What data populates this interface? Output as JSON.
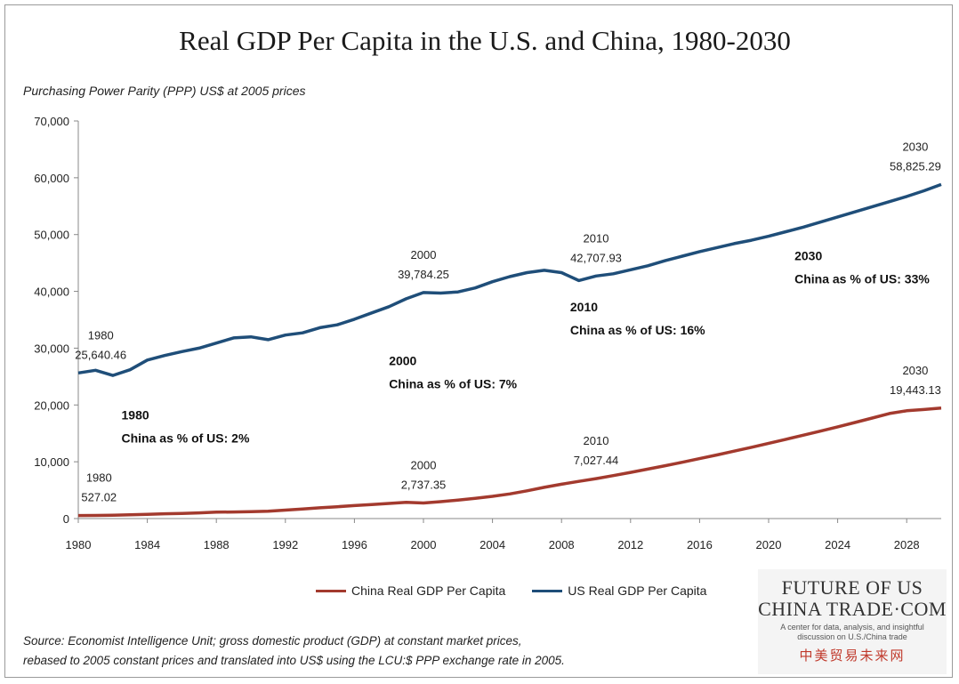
{
  "title": "Real GDP Per Capita in the U.S. and China, 1980-2030",
  "units_label": "Purchasing Power Parity (PPP) US$ at 2005 prices",
  "chart_data": {
    "type": "line",
    "xlim": [
      1980,
      2030
    ],
    "ylim": [
      0,
      70000
    ],
    "y_ticks": [
      "0",
      "10,000",
      "20,000",
      "30,000",
      "40,000",
      "50,000",
      "60,000",
      "70,000"
    ],
    "x_ticks": [
      "1980",
      "1984",
      "1988",
      "1992",
      "1996",
      "2000",
      "2004",
      "2008",
      "2012",
      "2016",
      "2020",
      "2024",
      "2028"
    ],
    "grid": false,
    "legend_position": "bottom",
    "series": [
      {
        "name": "China Real GDP Per Capita",
        "color": "#a33a2e",
        "x": [
          1980,
          1981,
          1982,
          1983,
          1984,
          1985,
          1986,
          1987,
          1988,
          1989,
          1990,
          1991,
          1992,
          1993,
          1994,
          1995,
          1996,
          1997,
          1998,
          1999,
          2000,
          2001,
          2002,
          2003,
          2004,
          2005,
          2006,
          2007,
          2008,
          2009,
          2010,
          2011,
          2012,
          2013,
          2014,
          2015,
          2016,
          2017,
          2018,
          2019,
          2020,
          2021,
          2022,
          2023,
          2024,
          2025,
          2026,
          2027,
          2028,
          2029,
          2030
        ],
        "values": [
          527.02,
          548,
          590,
          650,
          745,
          840,
          910,
          1010,
          1120,
          1160,
          1200,
          1300,
          1480,
          1680,
          1890,
          2080,
          2280,
          2480,
          2660,
          2860,
          2737.35,
          2980,
          3250,
          3570,
          3920,
          4340,
          4880,
          5500,
          6050,
          6540,
          7027.44,
          7560,
          8120,
          8700,
          9300,
          9920,
          10550,
          11200,
          11870,
          12550,
          13250,
          13950,
          14670,
          15400,
          16150,
          16920,
          17700,
          18500,
          18980,
          19200,
          19443.13
        ]
      },
      {
        "name": "US Real GDP Per Capita",
        "color": "#1f4e79",
        "x": [
          1980,
          1981,
          1982,
          1983,
          1984,
          1985,
          1986,
          1987,
          1988,
          1989,
          1990,
          1991,
          1992,
          1993,
          1994,
          1995,
          1996,
          1997,
          1998,
          1999,
          2000,
          2001,
          2002,
          2003,
          2004,
          2005,
          2006,
          2007,
          2008,
          2009,
          2010,
          2011,
          2012,
          2013,
          2014,
          2015,
          2016,
          2017,
          2018,
          2019,
          2020,
          2021,
          2022,
          2023,
          2024,
          2025,
          2026,
          2027,
          2028,
          2029,
          2030
        ],
        "values": [
          25640.46,
          26100,
          25200,
          26200,
          27900,
          28700,
          29400,
          30000,
          30900,
          31800,
          32000,
          31500,
          32300,
          32700,
          33600,
          34100,
          35100,
          36200,
          37300,
          38700,
          39784.25,
          39700,
          39900,
          40600,
          41700,
          42600,
          43300,
          43700,
          43300,
          41900,
          42707.93,
          43100,
          43800,
          44500,
          45400,
          46200,
          47000,
          47700,
          48400,
          49000,
          49700,
          50500,
          51300,
          52200,
          53100,
          54000,
          54900,
          55800,
          56700,
          57700,
          58825.29
        ]
      }
    ],
    "annotations": [
      {
        "year_label": "1980",
        "value_label": "25,640.46",
        "x": 1981.3,
        "y": 25640.46
      },
      {
        "year_label": "2000",
        "value_label": "39,784.25",
        "x": 2000,
        "y": 39784.25
      },
      {
        "year_label": "2010",
        "value_label": "42,707.93",
        "x": 2010,
        "y": 42707.93
      },
      {
        "year_label": "2030",
        "value_label": "58,825.29",
        "x": 2028.5,
        "y": 58825.29
      },
      {
        "year_label": "1980",
        "value_label": "527.02",
        "x": 1981.2,
        "y": 527.02
      },
      {
        "year_label": "2000",
        "value_label": "2,737.35",
        "x": 2000,
        "y": 2737.35
      },
      {
        "year_label": "2010",
        "value_label": "7,027.44",
        "x": 2010,
        "y": 7027.44
      },
      {
        "year_label": "2030",
        "value_label": "19,443.13",
        "x": 2028.5,
        "y": 19443.13
      }
    ],
    "notes": [
      {
        "year": "1980",
        "text": "China as % of US: 2%",
        "x": 1982.5,
        "y": 17500
      },
      {
        "year": "2000",
        "text": "China as % of US: 7%",
        "x": 1998,
        "y": 27000
      },
      {
        "year": "2010",
        "text": "China as % of US: 16%",
        "x": 2008.5,
        "y": 36500
      },
      {
        "year": "2030",
        "text": "China as % of US: 33%",
        "x": 2021.5,
        "y": 45500
      }
    ]
  },
  "legend": {
    "china_label": "China Real GDP Per Capita",
    "us_label": "US Real GDP Per Capita"
  },
  "source": {
    "line1": "Source:  Economist Intelligence Unit; gross domestic product (GDP) at constant market prices,",
    "line2": "rebased to 2005 constant prices and translated into US$ using the LCU:$ PPP exchange rate in 2005."
  },
  "logo": {
    "line1": "FUTURE OF US",
    "line2": "CHINA TRADE·COM",
    "tagline": "A center for data, analysis, and insightful discussion on U.S./China trade",
    "chinese": "中美贸易未来网"
  }
}
